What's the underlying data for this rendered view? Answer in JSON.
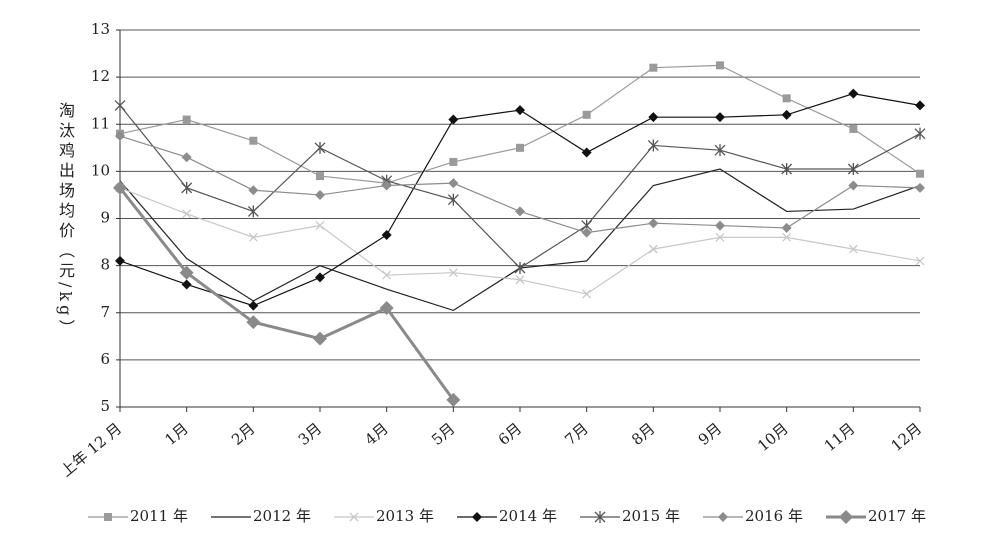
{
  "chart_data": {
    "type": "line",
    "y_label": "淘汰鸡出场均价（元/kg）",
    "categories": [
      "上年 12 月",
      "1月",
      "2月",
      "3月",
      "4月",
      "5月",
      "6月",
      "7月",
      "8月",
      "9月",
      "10月",
      "11月",
      "12月"
    ],
    "ylim": [
      5,
      13
    ],
    "yticks": [
      5,
      6,
      7,
      8,
      9,
      10,
      11,
      12,
      13
    ],
    "grid": true,
    "series": [
      {
        "name": "2011 年",
        "color": "#9a9a9a",
        "marker": "square",
        "width": 1.2,
        "dash": false,
        "values": [
          10.8,
          11.1,
          10.65,
          9.9,
          9.75,
          10.2,
          10.5,
          11.2,
          12.2,
          12.25,
          11.55,
          10.9,
          9.95
        ]
      },
      {
        "name": "2012 年",
        "color": "#222222",
        "marker": "none",
        "width": 1.2,
        "dash": false,
        "values": [
          9.8,
          8.15,
          7.25,
          8.0,
          7.5,
          7.05,
          7.95,
          8.1,
          9.7,
          10.05,
          9.15,
          9.2,
          9.7
        ]
      },
      {
        "name": "2013 年",
        "color": "#c8c8c8",
        "marker": "x",
        "width": 1.2,
        "dash": false,
        "values": [
          9.65,
          9.1,
          8.6,
          8.85,
          7.8,
          7.85,
          7.7,
          7.4,
          8.35,
          8.6,
          8.6,
          8.35,
          8.1
        ]
      },
      {
        "name": "2014 年",
        "color": "#111111",
        "marker": "diamond",
        "width": 1.2,
        "dash": false,
        "values": [
          8.1,
          7.6,
          7.15,
          7.75,
          8.65,
          11.1,
          11.3,
          10.4,
          11.15,
          11.15,
          11.2,
          11.65,
          11.4
        ]
      },
      {
        "name": "2015 年",
        "color": "#555555",
        "marker": "asterisk",
        "width": 1.2,
        "dash": false,
        "values": [
          11.4,
          9.65,
          9.15,
          10.5,
          9.8,
          9.4,
          7.95,
          8.85,
          10.55,
          10.45,
          10.05,
          10.05,
          10.8
        ]
      },
      {
        "name": "2016 年",
        "color": "#8c8c8c",
        "marker": "diamond",
        "width": 1.2,
        "dash": false,
        "values": [
          10.75,
          10.3,
          9.6,
          9.5,
          9.7,
          9.75,
          9.15,
          8.7,
          8.9,
          8.85,
          8.8,
          9.7,
          9.65
        ]
      },
      {
        "name": "2017 年",
        "color": "#8a8a8a",
        "marker": "bigdiamond",
        "width": 3,
        "dash": false,
        "values": [
          9.65,
          7.85,
          6.8,
          6.45,
          7.1,
          5.15,
          null,
          null,
          null,
          null,
          null,
          null,
          null
        ]
      }
    ]
  }
}
